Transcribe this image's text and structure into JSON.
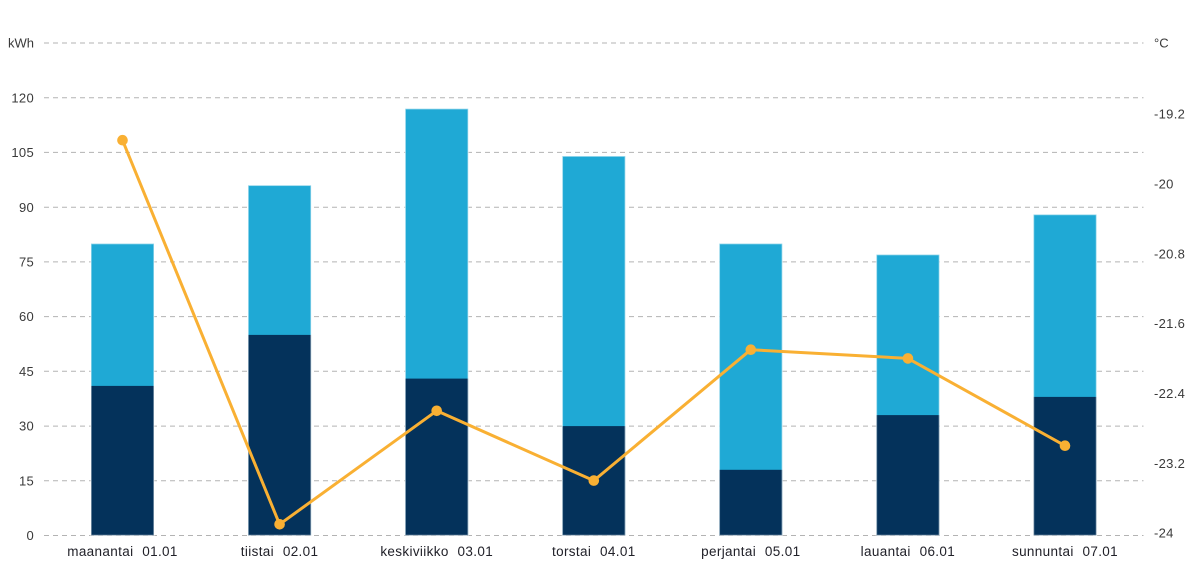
{
  "chart_data": {
    "type": "bar",
    "subtype": "stacked-bars-with-temperature-line",
    "title": "",
    "categories": [
      "maanantai 01.01",
      "tiistai 02.01",
      "keskiviikko 03.01",
      "torstai 04.01",
      "perjantai 05.01",
      "lauantai 06.01",
      "sunnuntai 07.01"
    ],
    "series": [
      {
        "name": "consumption-dark-segment",
        "type": "bar",
        "axis": "left",
        "color_key": "dark_blue",
        "values": [
          41,
          55,
          43,
          30,
          18,
          33,
          38
        ]
      },
      {
        "name": "consumption-light-segment",
        "type": "bar",
        "axis": "left",
        "color_key": "light_blue",
        "values": [
          39,
          41,
          74,
          74,
          62,
          44,
          50
        ]
      },
      {
        "name": "temperature",
        "type": "line",
        "axis": "right",
        "color_key": "line_orange",
        "values": [
          -19.5,
          -23.9,
          -22.6,
          -23.4,
          -21.9,
          -22.0,
          -23.0
        ]
      }
    ],
    "bar_totals": [
      80,
      96,
      117,
      104,
      80,
      77,
      88
    ],
    "left_axis": {
      "title": "kWh",
      "min": 0,
      "max": 135,
      "tick_step": 15,
      "tick_labels": [
        "120",
        "105",
        "90",
        "75",
        "60",
        "45",
        "30",
        "15",
        "0"
      ],
      "tick_values": [
        120,
        105,
        90,
        75,
        60,
        45,
        30,
        15,
        0
      ]
    },
    "right_axis": {
      "title": "°C",
      "tick_labels": [
        "-19.2",
        "-20",
        "-20.8",
        "-21.6",
        "-22.4",
        "-23.2",
        "-24"
      ],
      "tick_values": [
        -19.2,
        -20,
        -20.8,
        -21.6,
        -22.4,
        -23.2,
        -24
      ],
      "tick_step": 0.8
    },
    "grid": {
      "visible": true,
      "style": "dashed",
      "orientation": "horizontal"
    },
    "legend": {
      "visible": false
    }
  },
  "colors": {
    "light_blue": "#1FA9D5",
    "dark_blue": "#04325B",
    "line_orange": "#F9B033",
    "grid": "#B3B3B3",
    "axis_tick_text": "#3A3A3A",
    "category_text": "#212129",
    "bar_stroke": "rgba(255,255,255,0.5)",
    "background": "#FFFFFF"
  }
}
